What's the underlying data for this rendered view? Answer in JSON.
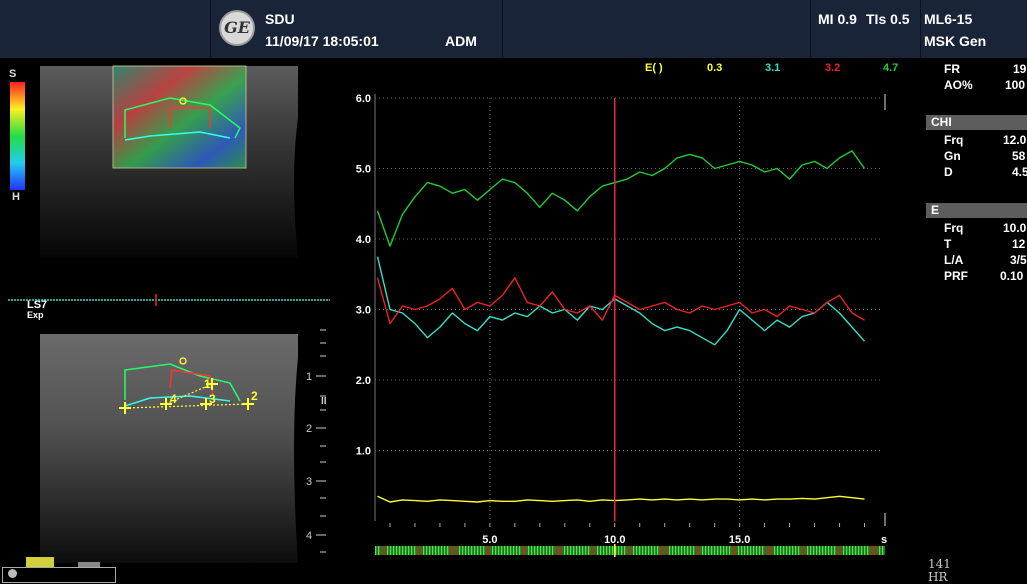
{
  "header": {
    "logo_text": "GE",
    "institution": "SDU",
    "datetime": "11/09/17 18:05:01",
    "operator": "ADM",
    "mi": "MI 0.9",
    "tis": "TIs 0.5",
    "probe": "ML6-15",
    "preset": "MSK Gen"
  },
  "params": {
    "fr_label": "FR",
    "fr_value": "19",
    "ao_label": "AO%",
    "ao_value": "100",
    "chi_title": "CHI",
    "chi_frq_label": "Frq",
    "chi_frq_value": "12.0",
    "chi_gn_label": "Gn",
    "chi_gn_value": "58",
    "chi_d_label": "D",
    "chi_d_value": "4.5",
    "e_title": "E",
    "e_frq_label": "Frq",
    "e_frq_value": "10.0",
    "e_t_label": "T",
    "e_t_value": "12",
    "e_la_label": "L/A",
    "e_la_value": "3/5",
    "e_prf_label": "PRF",
    "e_prf_value": "0.10"
  },
  "scale": {
    "top": "S",
    "bottom": "H"
  },
  "ecg": {
    "label": "LS7",
    "sublabel": "Exp"
  },
  "markers": {
    "m1": "1",
    "m2": "2",
    "m3": "3",
    "m4": "4"
  },
  "depth_labels": [
    "1",
    "2",
    "3",
    "4"
  ],
  "focus_label": "II",
  "hr": {
    "value": "141",
    "label": "HR"
  },
  "colors": {
    "yellow": "#ffff33",
    "cyan": "#33e0c8",
    "red": "#ee2222",
    "green": "#22cc33",
    "header_bg": "#1a2438"
  },
  "chart_data": {
    "type": "line",
    "legend_title": "E( )",
    "cursor_x": 10.0,
    "xlim": [
      0.4,
      20.5
    ],
    "ylim": [
      0,
      6.0
    ],
    "x_ticks": [
      "5.0",
      "10.0",
      "15.0"
    ],
    "x_tick_values": [
      5.0,
      10.0,
      15.0
    ],
    "x_unit": "s",
    "y_ticks": [
      "1.0",
      "2.0",
      "3.0",
      "4.0",
      "5.0",
      "6.0"
    ],
    "y_tick_values": [
      1.0,
      2.0,
      3.0,
      4.0,
      5.0,
      6.0
    ],
    "x": [
      0.5,
      1.0,
      1.5,
      2.0,
      2.5,
      3.0,
      3.5,
      4.0,
      4.5,
      5.0,
      5.5,
      6.0,
      6.5,
      7.0,
      7.5,
      8.0,
      8.5,
      9.0,
      9.5,
      10.0,
      10.5,
      11.0,
      11.5,
      12.0,
      12.5,
      13.0,
      13.5,
      14.0,
      14.5,
      15.0,
      15.5,
      16.0,
      16.5,
      17.0,
      17.5,
      18.0,
      18.5,
      19.0,
      19.5,
      20.0
    ],
    "series": [
      {
        "name": "0.3",
        "color": "#ffff33",
        "values": [
          0.35,
          0.27,
          0.3,
          0.29,
          0.28,
          0.3,
          0.29,
          0.28,
          0.27,
          0.29,
          0.28,
          0.28,
          0.3,
          0.29,
          0.28,
          0.29,
          0.3,
          0.28,
          0.3,
          0.29,
          0.3,
          0.31,
          0.3,
          0.31,
          0.3,
          0.31,
          0.3,
          0.31,
          0.31,
          0.3,
          0.31,
          0.3,
          0.31,
          0.31,
          0.32,
          0.31,
          0.33,
          0.35,
          0.33,
          0.31
        ]
      },
      {
        "name": "3.1",
        "color": "#33e0c8",
        "values": [
          3.75,
          3.0,
          2.95,
          2.8,
          2.6,
          2.75,
          2.95,
          2.8,
          2.7,
          2.9,
          2.85,
          2.95,
          2.9,
          3.05,
          2.95,
          3.0,
          2.85,
          3.05,
          3.0,
          3.15,
          3.05,
          2.95,
          2.8,
          2.7,
          2.75,
          2.7,
          2.6,
          2.5,
          2.7,
          3.0,
          2.85,
          2.7,
          2.85,
          2.75,
          2.9,
          2.95,
          3.1,
          2.95,
          2.75,
          2.55
        ]
      },
      {
        "name": "3.2",
        "color": "#ee2222",
        "values": [
          3.45,
          2.8,
          3.05,
          3.0,
          3.05,
          3.15,
          3.3,
          3.0,
          3.1,
          3.05,
          3.2,
          3.45,
          3.1,
          3.05,
          3.25,
          3.0,
          2.95,
          3.05,
          2.85,
          3.2,
          3.1,
          3.0,
          3.05,
          3.1,
          3.0,
          2.95,
          3.05,
          3.0,
          3.05,
          3.1,
          2.95,
          3.0,
          2.9,
          3.05,
          3.0,
          2.95,
          3.1,
          3.2,
          2.95,
          2.85
        ]
      },
      {
        "name": "4.7",
        "color": "#22cc33",
        "values": [
          4.4,
          3.9,
          4.35,
          4.6,
          4.8,
          4.75,
          4.65,
          4.7,
          4.55,
          4.7,
          4.85,
          4.8,
          4.65,
          4.45,
          4.65,
          4.55,
          4.4,
          4.6,
          4.75,
          4.8,
          4.85,
          4.95,
          4.9,
          5.0,
          5.15,
          5.2,
          5.15,
          5.0,
          5.05,
          5.1,
          5.05,
          4.95,
          5.0,
          4.85,
          5.05,
          5.1,
          5.0,
          5.15,
          5.25,
          5.0
        ]
      }
    ]
  }
}
